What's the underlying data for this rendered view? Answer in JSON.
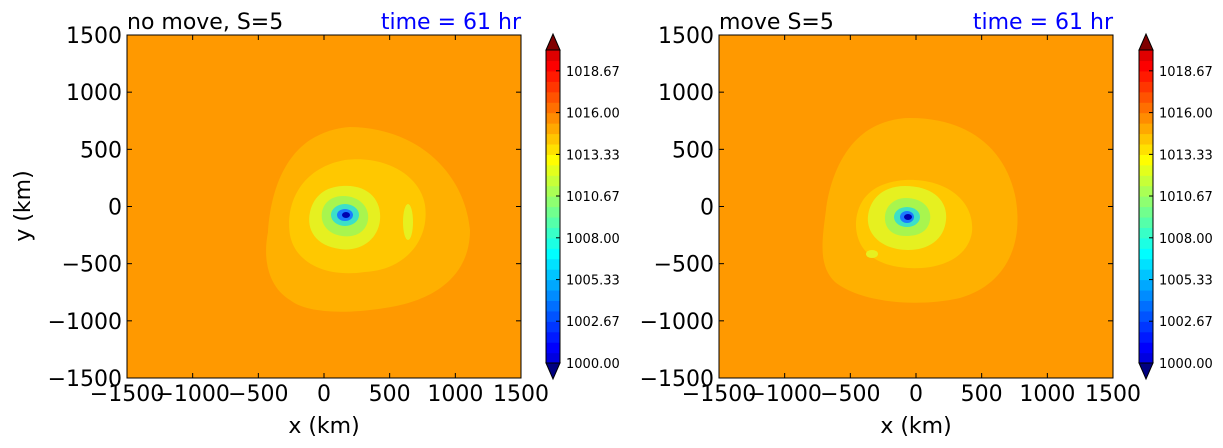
{
  "chart_data": [
    {
      "type": "heatmap",
      "title_left": "no move, S=5",
      "title_right": "time = 61 hr",
      "xlabel": "x (km)",
      "ylabel": "y (km)",
      "xlim": [
        -1500,
        1500
      ],
      "ylim": [
        -1500,
        1500
      ],
      "xticks": [
        "−1500",
        "−1000",
        "−500",
        "0",
        "500",
        "1000",
        "1500"
      ],
      "yticks": [
        "−1500",
        "−1000",
        "−500",
        "0",
        "500",
        "1000",
        "1500"
      ],
      "center_km": [
        150,
        -80
      ],
      "min_value": 1000.0,
      "background_value": 1016.0
    },
    {
      "type": "heatmap",
      "title_left": "move S=5",
      "title_right": "time = 61 hr",
      "xlabel": "x (km)",
      "ylabel": "",
      "xlim": [
        -1500,
        1500
      ],
      "ylim": [
        -1500,
        1500
      ],
      "xticks": [
        "−1500",
        "−1000",
        "−500",
        "0",
        "500",
        "1000",
        "1500"
      ],
      "yticks": [
        "−1500",
        "−1000",
        "−500",
        "0",
        "500",
        "1000",
        "1500"
      ],
      "center_km": [
        -50,
        -90
      ],
      "min_value": 1000.0,
      "background_value": 1016.0
    }
  ],
  "colorbar": {
    "range": [
      1000.0,
      1020.0
    ],
    "tick_values": [
      1000.0,
      1002.67,
      1005.33,
      1008.0,
      1010.67,
      1013.33,
      1016.0,
      1018.67
    ],
    "tick_labels": [
      "1000.00",
      "1002.67",
      "1005.33",
      "1008.00",
      "1010.67",
      "1013.33",
      "1016.00",
      "1018.67"
    ],
    "levels": 30,
    "colormap": "jet",
    "extend": "both"
  },
  "colors": {
    "title_right": "#0000ff",
    "background_field": "#ff9900",
    "ring_outer": "#ffb000",
    "ring_mid": "#ffc800",
    "ring_inner": "#e6f020"
  }
}
